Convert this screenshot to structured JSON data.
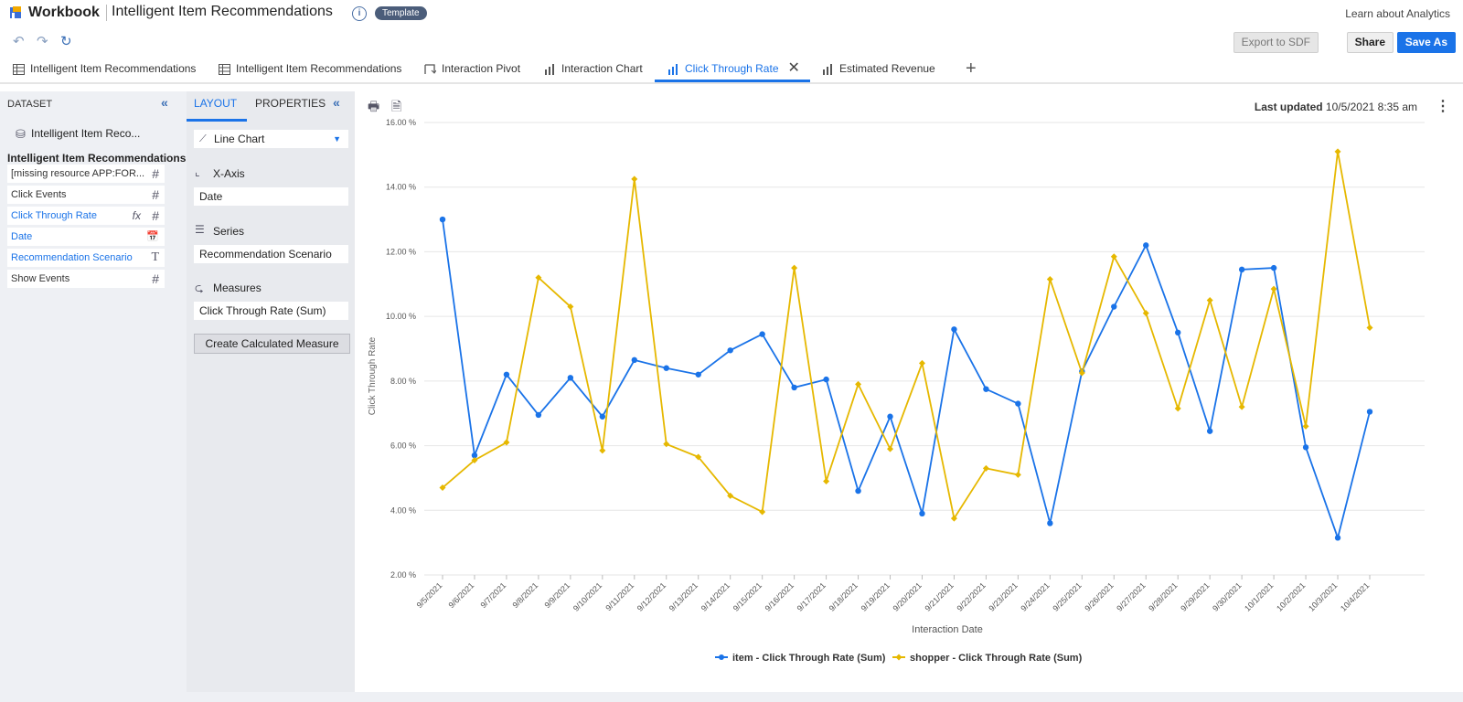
{
  "header": {
    "app_name": "Workbook",
    "title": "Intelligent Item Recommendations",
    "badge": "Template",
    "learn_link": "Learn about Analytics"
  },
  "toolbar": {
    "export_label": "Export to SDF",
    "share_label": "Share",
    "saveas_label": "Save As"
  },
  "tabs": [
    {
      "label": "Intelligent Item Recommendations",
      "icon": "table-icon"
    },
    {
      "label": "Intelligent Item Recommendations",
      "icon": "table-icon"
    },
    {
      "label": "Interaction Pivot",
      "icon": "pivot-icon"
    },
    {
      "label": "Interaction Chart",
      "icon": "bar-chart-icon"
    },
    {
      "label": "Click Through Rate",
      "icon": "bar-chart-icon",
      "active": true
    },
    {
      "label": "Estimated Revenue",
      "icon": "bar-chart-icon"
    }
  ],
  "dataset_panel": {
    "title": "DATASET",
    "dataset_name": "Intelligent Item Reco...",
    "heading": "Intelligent Item Recommendations",
    "fields": [
      {
        "label": "[missing resource APP:FOR...",
        "type": "#"
      },
      {
        "label": "Click Events",
        "type": "#"
      },
      {
        "label": "Click Through Rate",
        "type": "#",
        "calc": "fx"
      },
      {
        "label": "Date",
        "type": "📅"
      },
      {
        "label": "Recommendation Scenario",
        "type": "T"
      },
      {
        "label": "Show Events",
        "type": "#"
      }
    ]
  },
  "layout_panel": {
    "tab_layout": "LAYOUT",
    "tab_properties": "PROPERTIES",
    "chart_type": "Line Chart",
    "xaxis_title": "X-Axis",
    "xaxis_value": "Date",
    "series_title": "Series",
    "series_value": "Recommendation Scenario",
    "measures_title": "Measures",
    "measures_value": "Click Through Rate  (Sum)",
    "calc_button": "Create Calculated Measure"
  },
  "chart_meta": {
    "last_updated_label": "Last updated",
    "last_updated_value": "10/5/2021 8:35 am"
  },
  "chart_data": {
    "type": "line",
    "xlabel": "Interaction Date",
    "ylabel": "Click Through Rate",
    "ylim": [
      2,
      16
    ],
    "yticks": [
      2,
      4,
      6,
      8,
      10,
      12,
      14,
      16
    ],
    "ytick_labels": [
      "2.00 %",
      "4.00 %",
      "6.00 %",
      "8.00 %",
      "10.00 %",
      "12.00 %",
      "14.00 %",
      "16.00 %"
    ],
    "categories": [
      "9/5/2021",
      "9/6/2021",
      "9/7/2021",
      "9/8/2021",
      "9/9/2021",
      "9/10/2021",
      "9/11/2021",
      "9/12/2021",
      "9/13/2021",
      "9/14/2021",
      "9/15/2021",
      "9/16/2021",
      "9/17/2021",
      "9/18/2021",
      "9/19/2021",
      "9/20/2021",
      "9/21/2021",
      "9/22/2021",
      "9/23/2021",
      "9/24/2021",
      "9/25/2021",
      "9/26/2021",
      "9/27/2021",
      "9/28/2021",
      "9/29/2021",
      "9/30/2021",
      "10/1/2021",
      "10/2/2021",
      "10/3/2021",
      "10/4/2021"
    ],
    "legend_position": "bottom",
    "grid": true,
    "series": [
      {
        "name": "item - Click Through Rate (Sum)",
        "color": "#1a73e8",
        "marker": "circle",
        "values": [
          13.0,
          5.7,
          8.2,
          6.95,
          8.1,
          6.9,
          8.65,
          8.4,
          8.2,
          8.95,
          9.45,
          7.8,
          8.05,
          4.6,
          6.9,
          3.9,
          9.6,
          7.75,
          7.3,
          3.6,
          8.3,
          10.3,
          12.2,
          9.5,
          6.45,
          11.45,
          11.5,
          5.95,
          3.15,
          7.05
        ]
      },
      {
        "name": "shopper - Click Through Rate (Sum)",
        "color": "#e6b800",
        "marker": "diamond",
        "values": [
          4.7,
          5.55,
          6.1,
          11.2,
          10.3,
          5.85,
          14.25,
          6.05,
          5.65,
          4.45,
          3.95,
          11.5,
          4.9,
          7.9,
          5.9,
          8.55,
          3.75,
          5.3,
          5.1,
          11.15,
          8.25,
          11.85,
          10.1,
          7.15,
          10.5,
          7.2,
          10.85,
          6.6,
          15.1,
          9.65
        ]
      }
    ]
  }
}
